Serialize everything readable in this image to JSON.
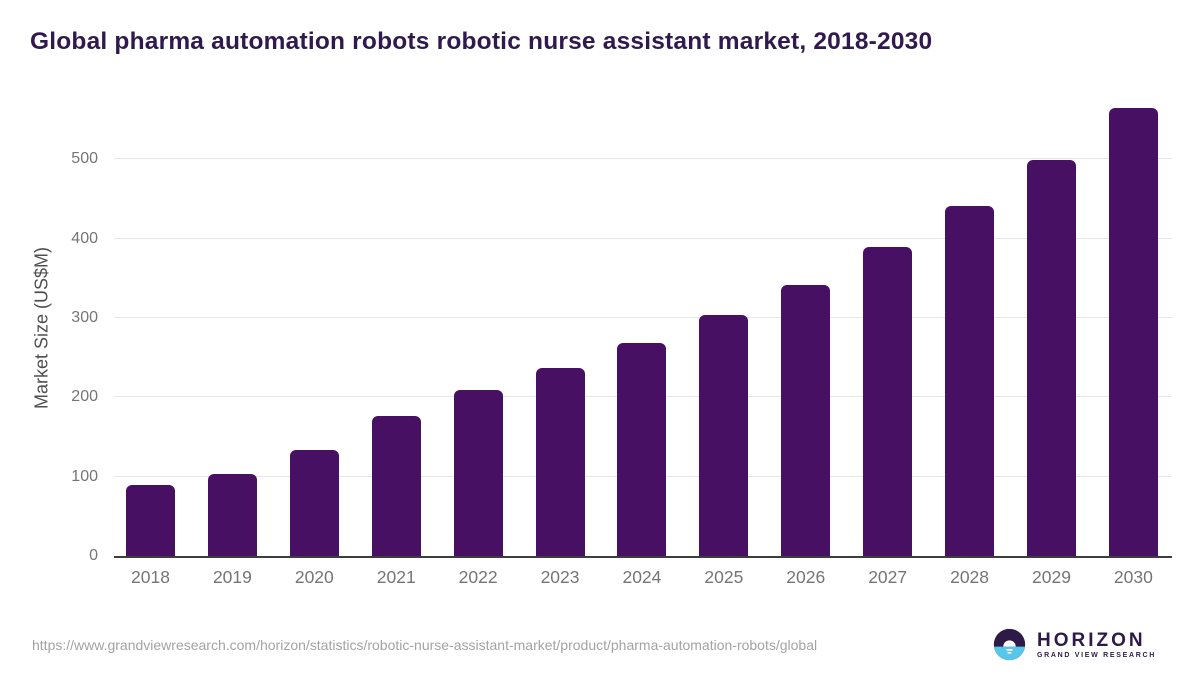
{
  "title": "Global pharma automation robots robotic nurse assistant market, 2018-2030",
  "chart_data": {
    "type": "bar",
    "title": "Global pharma automation robots robotic nurse assistant market, 2018-2030",
    "categories": [
      "2018",
      "2019",
      "2020",
      "2021",
      "2022",
      "2023",
      "2024",
      "2025",
      "2026",
      "2027",
      "2028",
      "2029",
      "2030"
    ],
    "values": [
      90,
      103,
      134,
      176,
      209,
      237,
      268,
      304,
      342,
      389,
      441,
      499,
      565
    ],
    "xlabel": "",
    "ylabel": "Market Size (US$M)",
    "ylim": [
      0,
      580
    ],
    "yticks": [
      0,
      100,
      200,
      300,
      400,
      500
    ],
    "grid": true,
    "legend": "none",
    "bar_color": "#481063"
  },
  "colors": {
    "title": "#301a4d",
    "bar": "#481063",
    "axis_line": "#3d3d3d",
    "gridline": "#e7e7e7",
    "tick_label": "#757575",
    "url_text": "#a3a3a3",
    "logo_purple": "#2e1a47",
    "logo_blue": "#56c7ea"
  },
  "footer": {
    "source_url": "https://www.grandviewresearch.com/horizon/statistics/robotic-nurse-assistant-market/product/pharma-automation-robots/global",
    "logo": {
      "brand": "HORIZON",
      "tagline": "GRAND VIEW RESEARCH"
    }
  }
}
